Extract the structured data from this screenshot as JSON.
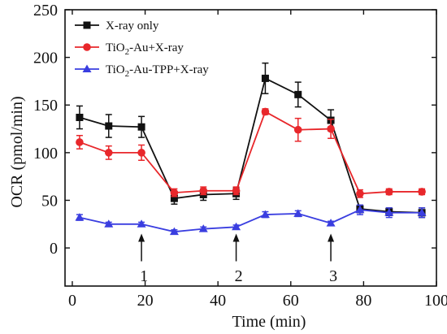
{
  "chart_data": {
    "type": "line",
    "xlabel": "Time (min)",
    "ylabel": "OCR (pmol/min)",
    "xlim": [
      -2,
      100
    ],
    "ylim": [
      -40,
      250
    ],
    "x_ticks": [
      0,
      20,
      40,
      60,
      80,
      100
    ],
    "y_ticks": [
      0,
      50,
      100,
      150,
      200,
      250
    ],
    "legend_position": "top-left",
    "grid": false,
    "series": [
      {
        "name": "X-ray only",
        "color": "#111111",
        "marker": "square",
        "x": [
          2,
          10,
          19,
          28,
          36,
          45,
          53,
          62,
          71,
          79,
          87,
          96
        ],
        "y": [
          137,
          128,
          127,
          52,
          56,
          57,
          178,
          161,
          134,
          41,
          38,
          37
        ],
        "err": [
          12,
          12,
          11,
          6,
          6,
          6,
          16,
          13,
          11,
          4,
          4,
          5
        ]
      },
      {
        "name_prefix": "TiO",
        "name_sub": "2",
        "name_suffix": "-Au+X-ray",
        "color": "#e8272b",
        "marker": "circle",
        "x": [
          2,
          10,
          19,
          28,
          36,
          45,
          53,
          62,
          71,
          79,
          87,
          96
        ],
        "y": [
          111,
          100,
          100,
          58,
          60,
          60,
          143,
          124,
          125,
          57,
          59,
          59
        ],
        "err": [
          7,
          7,
          8,
          4,
          4,
          4,
          3,
          12,
          10,
          4,
          3,
          3
        ]
      },
      {
        "name_prefix": "TiO",
        "name_sub": "2",
        "name_suffix": "-Au-TPP+X-ray",
        "color": "#3a3ee0",
        "marker": "triangle",
        "x": [
          2,
          10,
          19,
          28,
          36,
          45,
          53,
          62,
          71,
          79,
          87,
          96
        ],
        "y": [
          32,
          25,
          25,
          17,
          20,
          22,
          35,
          36,
          26,
          40,
          37,
          37
        ],
        "err": [
          3,
          2,
          2,
          2,
          2,
          2,
          3,
          3,
          2,
          5,
          5,
          5
        ]
      }
    ],
    "annotations": [
      {
        "label": "1",
        "x": 19,
        "arrow_tip_y": 15,
        "arrow_tail_y": -14
      },
      {
        "label": "2",
        "x": 45,
        "arrow_tip_y": 15,
        "arrow_tail_y": -14
      },
      {
        "label": "3",
        "x": 71,
        "arrow_tip_y": 15,
        "arrow_tail_y": -14
      }
    ]
  }
}
